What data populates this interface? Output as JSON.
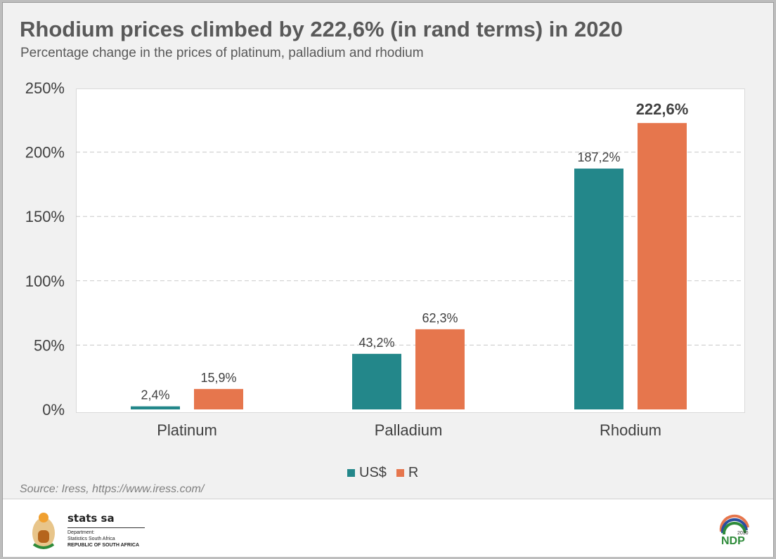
{
  "title": "Rhodium prices climbed by 222,6% (in rand terms) in 2020",
  "subtitle": "Percentage change in the prices of platinum, palladium and rhodium",
  "source": "Source: Iress, https://www.iress.com/",
  "footer": {
    "org": "stats sa",
    "dept": "Department:",
    "dept_name": "Statistics South Africa",
    "republic": "REPUBLIC OF SOUTH AFRICA",
    "ndp": "NDP",
    "ndp_year": "2030"
  },
  "colors": {
    "usd": "#23878a",
    "rand": "#e6764d"
  },
  "chart_data": {
    "type": "bar",
    "title": "Rhodium prices climbed by 222,6% (in rand terms) in 2020",
    "categories": [
      "Platinum",
      "Palladium",
      "Rhodium"
    ],
    "series": [
      {
        "name": "US$",
        "values": [
          2.4,
          43.2,
          187.2
        ],
        "labels": [
          "2,4%",
          "43,2%",
          "187,2%"
        ]
      },
      {
        "name": "R",
        "values": [
          15.9,
          62.3,
          222.6
        ],
        "labels": [
          "15,9%",
          "62,3%",
          "222,6%"
        ]
      }
    ],
    "ylim": [
      0,
      250
    ],
    "yticks": [
      0,
      50,
      100,
      150,
      200,
      250
    ],
    "ytick_labels": [
      "0%",
      "50%",
      "100%",
      "150%",
      "200%",
      "250%"
    ],
    "grid": true,
    "legend": "bottom"
  }
}
